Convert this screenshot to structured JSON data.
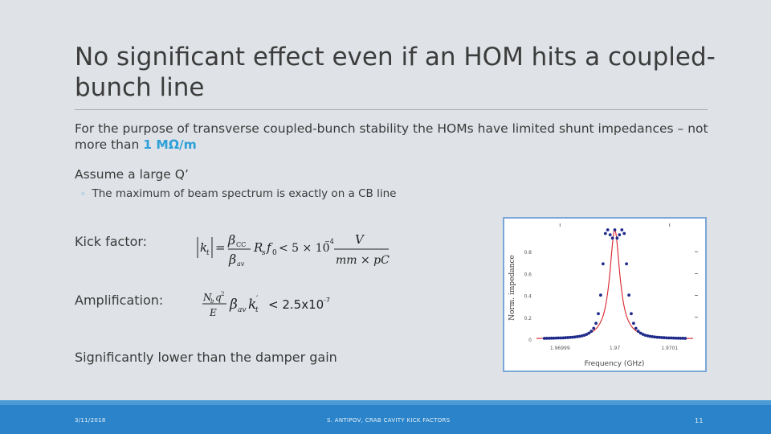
{
  "slide": {
    "title": "No significant effect even if an HOM hits a coupled-bunch line",
    "para1_text": "For the purpose of transverse coupled-bunch stability the HOMs have limited shunt impedances – not more than ",
    "para1_highlight": "1 MΩ/m",
    "para2": "Assume a large Q’",
    "bullet": "The maximum of beam spectrum is exactly on a CB line",
    "kick_label": "Kick factor:",
    "amp_label": "Amplification:",
    "conclusion": "Significantly lower than the damper gain",
    "formula_kick": {
      "beta_top": "β",
      "beta_top_sub": "CC",
      "beta_bot": "β",
      "beta_bot_sub": "av",
      "mid": "R",
      "mid_sub": "s",
      "f": "f",
      "f_sub": "0",
      "lt": "< 5 × 10",
      "exp": "−4",
      "num": "V",
      "den": "mm × pC"
    },
    "formula_amp": {
      "num": "N",
      "num_sub": "b",
      "num_q": "q",
      "num_q_sup": "2",
      "den": "E",
      "body": "β",
      "body_sub": "av",
      "k": "k",
      "k_sub": "t",
      "k_prime": "′",
      "rhs": "< 2.5x10",
      "rhs_exp": "-7"
    }
  },
  "chart_data": {
    "type": "line",
    "xlabel": "Frequency (GHz)",
    "ylabel": "Norm. impedance",
    "xlim": [
      1.9699,
      1.9701
    ],
    "ylim": [
      0,
      1
    ],
    "x_ticks": [
      "1.96999",
      "1.97",
      "1.9701"
    ],
    "y_ticks": [
      "0",
      "0.2",
      "0.4",
      "0.6",
      "0.8"
    ],
    "center": 1.97,
    "half_width": 7.8e-06,
    "line_color": "#d9232a",
    "point_color": "#1f2a8a",
    "x": [
      1.96991,
      1.969913,
      1.969916,
      1.969919,
      1.969922,
      1.969925,
      1.969928,
      1.969931,
      1.969934,
      1.969937,
      1.96994,
      1.969943,
      1.969946,
      1.969949,
      1.969952,
      1.969955,
      1.969958,
      1.969961,
      1.969964,
      1.969967,
      1.96997,
      1.969973,
      1.969976,
      1.969979,
      1.969982,
      1.969985,
      1.969988,
      1.969991,
      1.969994,
      1.969997,
      1.97,
      1.970003,
      1.970006,
      1.970009,
      1.970012,
      1.970015,
      1.970018,
      1.970021,
      1.970024,
      1.970027,
      1.97003,
      1.970033,
      1.970036,
      1.970039,
      1.970042,
      1.970045,
      1.970048,
      1.970051,
      1.970054,
      1.970057,
      1.97006,
      1.970063,
      1.970066,
      1.970069,
      1.970072,
      1.970075,
      1.970078,
      1.970081,
      1.970084,
      1.970087,
      1.97009
    ],
    "y": [
      0.007,
      0.008,
      0.008,
      0.009,
      0.009,
      0.01,
      0.011,
      0.011,
      0.012,
      0.013,
      0.015,
      0.016,
      0.018,
      0.02,
      0.023,
      0.026,
      0.03,
      0.036,
      0.044,
      0.055,
      0.072,
      0.099,
      0.145,
      0.233,
      0.403,
      0.689,
      0.967,
      1.0,
      0.955,
      0.924,
      1.0,
      0.924,
      0.955,
      1.0,
      0.967,
      0.689,
      0.403,
      0.233,
      0.145,
      0.099,
      0.072,
      0.055,
      0.044,
      0.036,
      0.03,
      0.026,
      0.023,
      0.02,
      0.018,
      0.016,
      0.015,
      0.013,
      0.012,
      0.011,
      0.011,
      0.01,
      0.009,
      0.009,
      0.008,
      0.008,
      0.007
    ]
  },
  "footer": {
    "date": "3/11/2018",
    "author": "S. ANTIPOV, CRAB CAVITY KICK FACTORS",
    "page": "11"
  }
}
